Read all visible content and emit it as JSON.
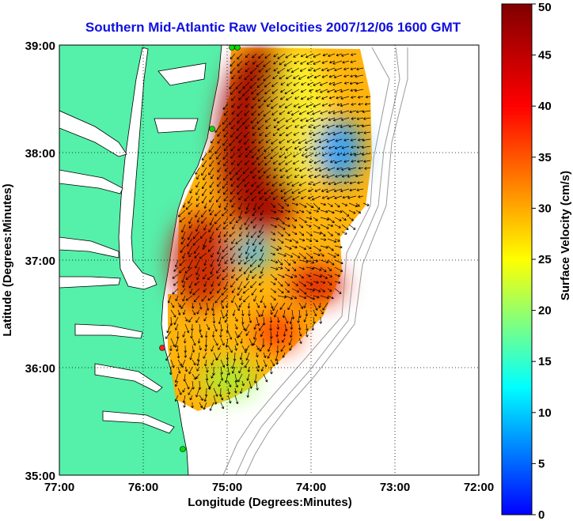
{
  "title": "Southern Mid-Atlantic Raw Velocities 2007/12/06 1600 GMT",
  "x_axis": {
    "label": "Longitude (Degrees:Minutes)",
    "ticks": [
      "77:00",
      "76:00",
      "75:00",
      "74:00",
      "73:00",
      "72:00"
    ]
  },
  "y_axis": {
    "label": "Latitude (Degrees:Minutes)",
    "ticks": [
      "39:00",
      "38:00",
      "37:00",
      "36:00",
      "35:00"
    ]
  },
  "colorbar": {
    "label": "Surface Velocity (cm/s)",
    "ticks": [
      "50",
      "45",
      "40",
      "35",
      "30",
      "25",
      "20",
      "15",
      "10",
      "5",
      "0"
    ],
    "min": 0,
    "max": 50,
    "colors": [
      "#0000ff",
      "#00ffff",
      "#ffff00",
      "#ff0000",
      "#800000"
    ]
  },
  "map": {
    "land_color": "#55f0aa",
    "water_color": "#ffffff",
    "grid": true,
    "stations": [
      {
        "color": "#00e000"
      },
      {
        "color": "#00e000"
      },
      {
        "color": "#00e000"
      },
      {
        "color": "#ff2020"
      },
      {
        "color": "#00e000"
      }
    ]
  },
  "chart_data": {
    "type": "heatmap",
    "title": "Southern Mid-Atlantic Raw Velocities 2007/12/06 1600 GMT",
    "xlabel": "Longitude (Degrees:Minutes)",
    "ylabel": "Latitude (Degrees:Minutes)",
    "xlim": [
      -77.0,
      -72.0
    ],
    "ylim": [
      35.0,
      39.0
    ],
    "value_label": "Surface Velocity (cm/s)",
    "value_range": [
      0,
      50
    ],
    "regions": [
      {
        "name": "northern shelf band",
        "approx_speed_cm_s": 45
      },
      {
        "name": "northeast low-speed patch",
        "approx_speed_cm_s": 8
      },
      {
        "name": "central low-speed patch",
        "approx_speed_cm_s": 10
      },
      {
        "name": "southern high-speed area",
        "approx_speed_cm_s": 40
      }
    ]
  }
}
